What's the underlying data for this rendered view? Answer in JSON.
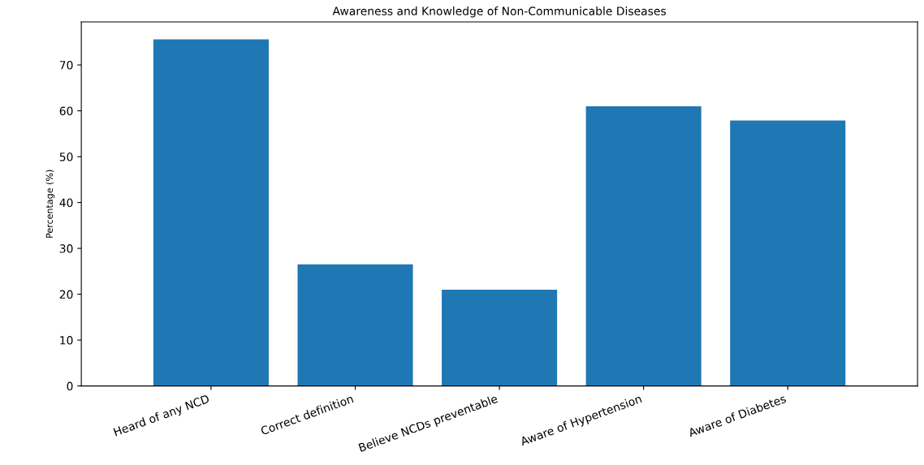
{
  "chart_data": {
    "type": "bar",
    "title": "Awareness and Knowledge of Non-Communicable Diseases",
    "ylabel": "Percentage (%)",
    "categories": [
      "Heard of any NCD",
      "Correct definition",
      "Believe NCDs preventable",
      "Aware of Hypertension",
      "Aware of Diabetes"
    ],
    "values": [
      75.6,
      26.5,
      21.0,
      61.0,
      57.9
    ],
    "color": "#1f77b4",
    "ylim": [
      0,
      79.4
    ],
    "yticks": [
      0,
      10,
      20,
      30,
      40,
      50,
      60,
      70
    ],
    "grid": false
  }
}
